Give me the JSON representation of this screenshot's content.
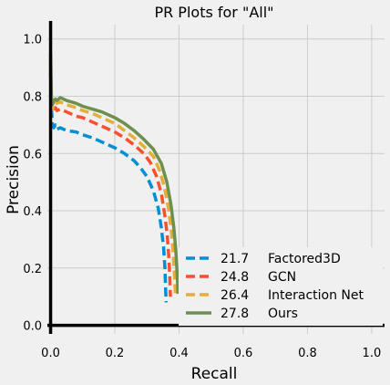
{
  "chart_data": {
    "type": "line",
    "title": "PR Plots for \"All\"",
    "xlabel": "Recall",
    "ylabel": "Precision",
    "xlim": [
      -0.01,
      1.04
    ],
    "ylim": [
      -0.03,
      1.05
    ],
    "xticks": [
      "0.0",
      "0.2",
      "0.4",
      "0.6",
      "0.8",
      "1.0"
    ],
    "yticks": [
      "0.0",
      "0.2",
      "0.4",
      "0.6",
      "0.8",
      "1.0"
    ],
    "grid": true,
    "legend": "bottom-right",
    "series": [
      {
        "name": "Factored3D",
        "score": "21.7",
        "color": "#008fd5",
        "dash": "dashed",
        "x": [
          0.0,
          0.003,
          0.006,
          0.01,
          0.015,
          0.02,
          0.03,
          0.05,
          0.08,
          0.1,
          0.13,
          0.16,
          0.2,
          0.23,
          0.26,
          0.28,
          0.3,
          0.32,
          0.335,
          0.345,
          0.352,
          0.356,
          0.358,
          0.36
        ],
        "y": [
          0.9,
          0.75,
          0.7,
          0.69,
          0.7,
          0.685,
          0.69,
          0.68,
          0.675,
          0.665,
          0.655,
          0.64,
          0.62,
          0.6,
          0.575,
          0.55,
          0.52,
          0.47,
          0.41,
          0.34,
          0.27,
          0.2,
          0.13,
          0.08
        ]
      },
      {
        "name": "GCN",
        "score": "24.8",
        "color": "#fc4f30",
        "dash": "dashed",
        "x": [
          0.0,
          0.003,
          0.006,
          0.01,
          0.015,
          0.02,
          0.03,
          0.05,
          0.08,
          0.1,
          0.13,
          0.16,
          0.2,
          0.23,
          0.26,
          0.29,
          0.31,
          0.33,
          0.345,
          0.355,
          0.363,
          0.368,
          0.371,
          0.373
        ],
        "y": [
          0.88,
          0.76,
          0.75,
          0.745,
          0.76,
          0.75,
          0.755,
          0.745,
          0.73,
          0.725,
          0.71,
          0.695,
          0.675,
          0.655,
          0.63,
          0.6,
          0.57,
          0.52,
          0.46,
          0.39,
          0.32,
          0.24,
          0.17,
          0.1
        ]
      },
      {
        "name": "Interaction Net",
        "score": "26.4",
        "color": "#e5ae38",
        "dash": "dashed",
        "x": [
          0.0,
          0.003,
          0.006,
          0.01,
          0.015,
          0.02,
          0.03,
          0.05,
          0.08,
          0.1,
          0.13,
          0.16,
          0.2,
          0.23,
          0.26,
          0.29,
          0.32,
          0.34,
          0.355,
          0.367,
          0.376,
          0.382,
          0.386,
          0.389
        ],
        "y": [
          0.92,
          0.76,
          0.755,
          0.77,
          0.78,
          0.775,
          0.78,
          0.77,
          0.76,
          0.75,
          0.74,
          0.725,
          0.705,
          0.68,
          0.655,
          0.625,
          0.59,
          0.54,
          0.48,
          0.41,
          0.33,
          0.25,
          0.17,
          0.1
        ]
      },
      {
        "name": "Ours",
        "score": "27.8",
        "color": "#6d904f",
        "dash": "solid",
        "x": [
          0.0,
          0.003,
          0.006,
          0.01,
          0.015,
          0.02,
          0.03,
          0.05,
          0.08,
          0.1,
          0.13,
          0.16,
          0.2,
          0.23,
          0.26,
          0.29,
          0.32,
          0.345,
          0.362,
          0.375,
          0.384,
          0.39,
          0.394,
          0.397
        ],
        "y": [
          0.95,
          0.77,
          0.77,
          0.785,
          0.79,
          0.785,
          0.795,
          0.785,
          0.775,
          0.765,
          0.755,
          0.745,
          0.725,
          0.705,
          0.68,
          0.65,
          0.615,
          0.565,
          0.5,
          0.42,
          0.34,
          0.26,
          0.18,
          0.11
        ]
      }
    ]
  }
}
